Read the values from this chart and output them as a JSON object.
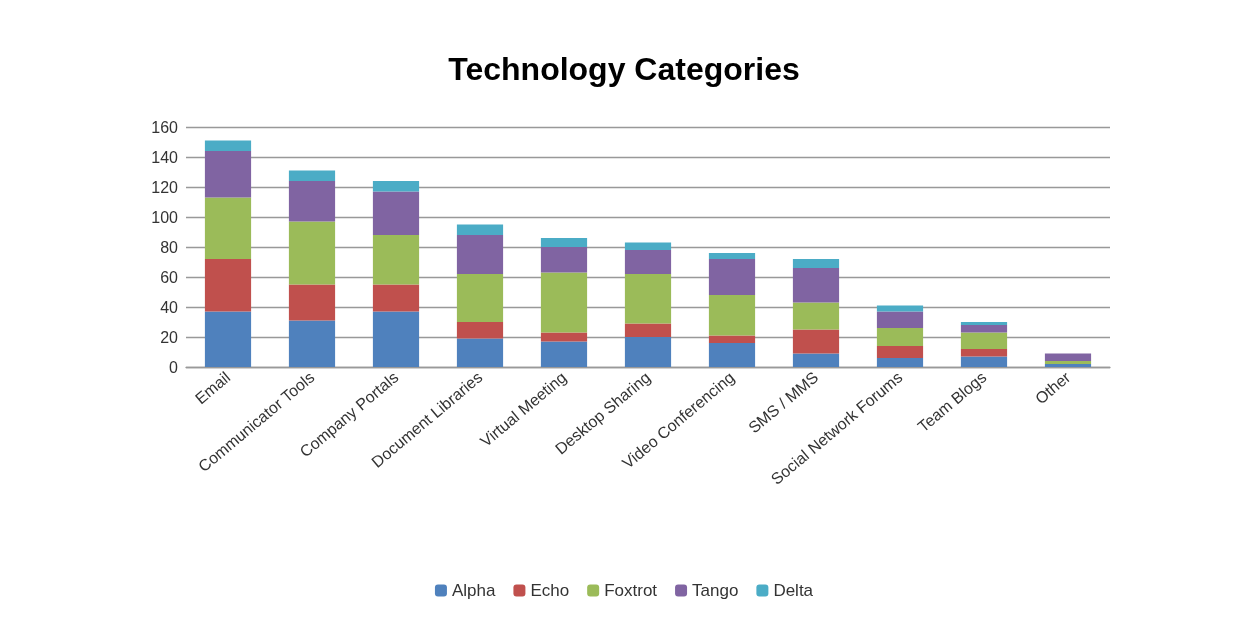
{
  "chart_data": {
    "type": "bar",
    "title": "Technology Categories",
    "stacked": true,
    "grid": "y",
    "legend": "bottom",
    "categories": [
      "Email",
      "Communicator Tools",
      "Company Portals",
      "Document Libraries",
      "Virtual Meeting",
      "Desktop Sharing",
      "Video Conferencing",
      "SMS / MMS",
      "Social Network Forums",
      "Team Blogs",
      "Other"
    ],
    "ylim": [
      0,
      160
    ],
    "yticks": [
      0,
      20,
      40,
      60,
      80,
      100,
      120,
      140,
      160
    ],
    "series": [
      {
        "name": "Alpha",
        "color": "#4f81bd",
        "values": [
          37,
          31,
          37,
          19,
          17,
          20,
          16,
          9,
          6,
          7,
          2
        ]
      },
      {
        "name": "Echo",
        "color": "#c0504d",
        "values": [
          35,
          24,
          18,
          11,
          6,
          9,
          5,
          16,
          8,
          5,
          0
        ]
      },
      {
        "name": "Foxtrot",
        "color": "#9bbb59",
        "values": [
          41,
          42,
          33,
          32,
          40,
          33,
          27,
          18,
          12,
          11,
          2
        ]
      },
      {
        "name": "Tango",
        "color": "#8064a2",
        "values": [
          31,
          27,
          29,
          26,
          17,
          16,
          24,
          23,
          11,
          5,
          5
        ]
      },
      {
        "name": "Delta",
        "color": "#4bacc6",
        "values": [
          7,
          7,
          7,
          7,
          6,
          5,
          4,
          6,
          4,
          2,
          0
        ]
      }
    ]
  }
}
